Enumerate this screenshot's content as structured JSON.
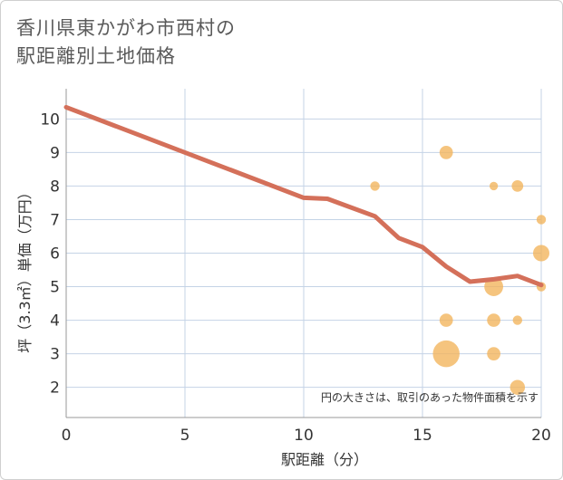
{
  "title_lines": [
    "香川県東かがわ市西村の",
    "駅距離別土地価格"
  ],
  "chart_data": {
    "type": "scatter",
    "title": "香川県東かがわ市西村の駅距離別土地価格",
    "xlabel": "駅距離（分）",
    "ylabel": "坪（3.3㎡）単価（万円）",
    "xlim": [
      0,
      20
    ],
    "ylim": [
      1.1,
      10.9
    ],
    "xticks": [
      0,
      5,
      10,
      15,
      20
    ],
    "yticks": [
      2,
      3,
      4,
      5,
      6,
      7,
      8,
      9,
      10
    ],
    "grid": true,
    "note": "円の大きさは、取引のあった物件面積を示す",
    "colors": {
      "points": "#f2b45a",
      "line": "#d4705a",
      "grid": "#c4d3e6"
    },
    "points": [
      {
        "x": 13,
        "y": 8.0,
        "size": 1
      },
      {
        "x": 16,
        "y": 9.0,
        "size": 2
      },
      {
        "x": 16,
        "y": 4.0,
        "size": 2
      },
      {
        "x": 16,
        "y": 3.0,
        "size": 8
      },
      {
        "x": 18,
        "y": 8.0,
        "size": 0.8
      },
      {
        "x": 18,
        "y": 5.0,
        "size": 4
      },
      {
        "x": 18,
        "y": 4.0,
        "size": 2
      },
      {
        "x": 18,
        "y": 3.0,
        "size": 2
      },
      {
        "x": 19,
        "y": 8.0,
        "size": 1.5
      },
      {
        "x": 19,
        "y": 4.0,
        "size": 1
      },
      {
        "x": 19,
        "y": 2.0,
        "size": 2.5
      },
      {
        "x": 20,
        "y": 7.0,
        "size": 1
      },
      {
        "x": 20,
        "y": 6.0,
        "size": 3
      },
      {
        "x": 20,
        "y": 5.0,
        "size": 1
      }
    ],
    "trend": {
      "x": [
        0,
        10,
        11,
        13,
        14,
        15,
        16,
        17,
        18,
        19,
        20
      ],
      "y": [
        10.35,
        7.65,
        7.62,
        7.1,
        6.45,
        6.18,
        5.6,
        5.15,
        5.22,
        5.32,
        5.05
      ]
    }
  }
}
